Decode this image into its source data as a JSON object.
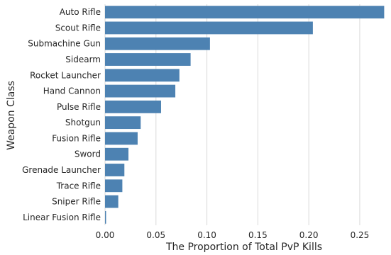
{
  "chart_data": {
    "type": "bar",
    "orientation": "horizontal",
    "categories": [
      "Auto Rifle",
      "Scout Rifle",
      "Submachine Gun",
      "Sidearm",
      "Rocket Launcher",
      "Hand Cannon",
      "Pulse Rifle",
      "Shotgun",
      "Fusion Rifle",
      "Sword",
      "Grenade Launcher",
      "Trace Rifle",
      "Sniper Rifle",
      "Linear Fusion Rifle"
    ],
    "values": [
      0.274,
      0.204,
      0.103,
      0.084,
      0.073,
      0.069,
      0.055,
      0.035,
      0.032,
      0.023,
      0.019,
      0.017,
      0.013,
      0.001
    ],
    "xlabel": "The Proportion of Total PvP Kills",
    "ylabel": "Weapon Class",
    "xlim": [
      0,
      0.28
    ],
    "xticks": [
      0.0,
      0.05,
      0.1,
      0.15,
      0.2,
      0.25
    ],
    "xtick_labels": [
      "0.00",
      "0.05",
      "0.10",
      "0.15",
      "0.20",
      "0.25"
    ],
    "grid": "vertical",
    "bar_color": "#4d82b2"
  }
}
